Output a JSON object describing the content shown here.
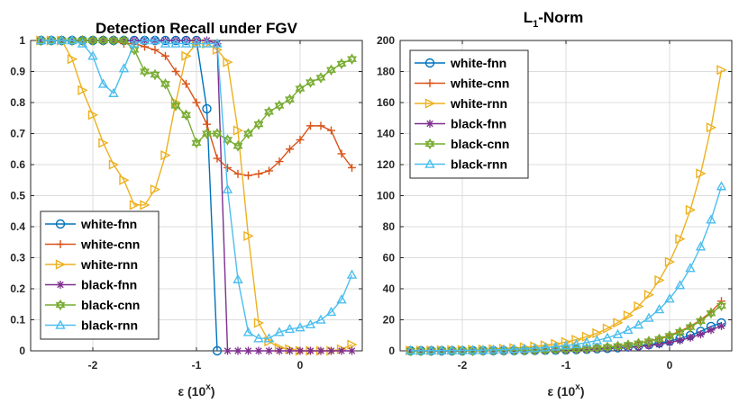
{
  "chart_data": [
    {
      "type": "line",
      "title": "Detection Recall under FGV",
      "xlabel": "ε (10^x)",
      "xlabel_main": "ε (10",
      "xlabel_sup": "x",
      "xlabel_close": ")",
      "ylabel": "",
      "xlim": [
        -2.6,
        0.6
      ],
      "ylim": [
        0,
        1
      ],
      "xticks": [
        -2,
        -1,
        0
      ],
      "xtick_labels": [
        "-2",
        "-1",
        "0"
      ],
      "yticks": [
        0,
        0.1,
        0.2,
        0.3,
        0.4,
        0.5,
        0.6,
        0.7,
        0.8,
        0.9,
        1
      ],
      "ytick_labels": [
        "0",
        "0.1",
        "0.2",
        "0.3",
        "0.4",
        "0.5",
        "0.6",
        "0.7",
        "0.8",
        "0.9",
        "1"
      ],
      "grid": true,
      "legend": "bottom-left",
      "x": [
        -2.5,
        -2.4,
        -2.3,
        -2.2,
        -2.1,
        -2.0,
        -1.9,
        -1.8,
        -1.7,
        -1.6,
        -1.5,
        -1.4,
        -1.3,
        -1.2,
        -1.1,
        -1.0,
        -0.9,
        -0.8,
        -0.7,
        -0.6,
        -0.5,
        -0.4,
        -0.3,
        -0.2,
        -0.1,
        0.0,
        0.1,
        0.2,
        0.3,
        0.4,
        0.5
      ],
      "series": [
        {
          "name": "white-fnn",
          "color": "#0072BD",
          "marker": "circle",
          "values": [
            1,
            1,
            1,
            1,
            1,
            1,
            1,
            1,
            1,
            1,
            1,
            1,
            1,
            1,
            1,
            1,
            0.78,
            0,
            null,
            null,
            null,
            null,
            null,
            null,
            null,
            null,
            null,
            null,
            null,
            null,
            null
          ]
        },
        {
          "name": "white-cnn",
          "color": "#D95319",
          "marker": "plus",
          "values": [
            1,
            1,
            1,
            1,
            1,
            1,
            1,
            1,
            0.99,
            0.99,
            0.98,
            0.97,
            0.95,
            0.9,
            0.86,
            0.8,
            0.73,
            0.62,
            0.59,
            0.57,
            0.565,
            0.57,
            0.58,
            0.61,
            0.65,
            0.68,
            0.725,
            0.725,
            0.71,
            0.635,
            0.59
          ]
        },
        {
          "name": "white-rnn",
          "color": "#EDB120",
          "marker": "triangle-right",
          "values": [
            1,
            1,
            1,
            0.94,
            0.84,
            0.76,
            0.67,
            0.6,
            0.55,
            0.47,
            0.47,
            0.52,
            0.63,
            0.8,
            0.95,
            0.99,
            0.99,
            0.97,
            0.93,
            0.71,
            0.37,
            0.09,
            0.03,
            0.01,
            0.005,
            0,
            0,
            0,
            0,
            0.005,
            0.02
          ]
        },
        {
          "name": "black-fnn",
          "color": "#7E2F8E",
          "marker": "asterisk",
          "values": [
            1,
            1,
            1,
            1,
            1,
            1,
            1,
            1,
            1,
            1,
            1,
            1,
            1,
            1,
            1,
            1,
            1,
            0.99,
            0,
            0,
            0,
            0,
            0,
            0,
            0,
            0,
            0,
            0,
            0,
            0,
            0
          ]
        },
        {
          "name": "black-cnn",
          "color": "#77AC30",
          "marker": "hexagram",
          "values": [
            1,
            1,
            1,
            1,
            1,
            1,
            1,
            1,
            1,
            0.97,
            0.9,
            0.89,
            0.86,
            0.79,
            0.76,
            0.67,
            0.7,
            0.7,
            0.68,
            0.66,
            0.7,
            0.73,
            0.77,
            0.79,
            0.81,
            0.845,
            0.865,
            0.88,
            0.905,
            0.925,
            0.94
          ]
        },
        {
          "name": "black-rnn",
          "color": "#4DBEEE",
          "marker": "triangle-up",
          "values": [
            1,
            1,
            1,
            1,
            0.99,
            0.95,
            0.86,
            0.83,
            0.91,
            0.99,
            1,
            1,
            0.99,
            0.99,
            0.99,
            0.99,
            0.99,
            0.99,
            0.52,
            0.23,
            0.06,
            0.04,
            0.04,
            0.06,
            0.07,
            0.075,
            0.085,
            0.1,
            0.125,
            0.165,
            0.245
          ]
        }
      ]
    },
    {
      "type": "line",
      "title": "L₁-Norm",
      "title_main": "L",
      "title_sub": "1",
      "title_rest": "-Norm",
      "xlabel": "ε (10^x)",
      "xlabel_main": "ε (10",
      "xlabel_sup": "x",
      "xlabel_close": ")",
      "ylabel": "",
      "xlim": [
        -2.6,
        0.6
      ],
      "ylim": [
        0,
        200
      ],
      "xticks": [
        -2,
        -1,
        0
      ],
      "xtick_labels": [
        "-2",
        "-1",
        "0"
      ],
      "yticks": [
        0,
        20,
        40,
        60,
        80,
        100,
        120,
        140,
        160,
        180,
        200
      ],
      "ytick_labels": [
        "0",
        "20",
        "40",
        "60",
        "80",
        "100",
        "120",
        "140",
        "160",
        "180",
        "200"
      ],
      "grid": true,
      "legend": "top-left",
      "x": [
        -2.5,
        -2.4,
        -2.3,
        -2.2,
        -2.1,
        -2.0,
        -1.9,
        -1.8,
        -1.7,
        -1.6,
        -1.5,
        -1.4,
        -1.3,
        -1.2,
        -1.1,
        -1.0,
        -0.9,
        -0.8,
        -0.7,
        -0.6,
        -0.5,
        -0.4,
        -0.3,
        -0.2,
        -0.1,
        0.0,
        0.1,
        0.2,
        0.3,
        0.4,
        0.5
      ],
      "series": [
        {
          "name": "white-fnn",
          "color": "#0072BD",
          "marker": "circle",
          "values": [
            0,
            0,
            0,
            0,
            0,
            0,
            0.1,
            0.1,
            0.1,
            0.2,
            0.2,
            0.3,
            0.3,
            0.4,
            0.5,
            0.6,
            0.8,
            1,
            1.3,
            1.6,
            2,
            2.5,
            3.2,
            4,
            5,
            6.3,
            7.9,
            9.9,
            12.5,
            15.7,
            18
          ]
        },
        {
          "name": "white-cnn",
          "color": "#D95319",
          "marker": "plus",
          "values": [
            0,
            0,
            0,
            0.1,
            0.1,
            0.1,
            0.1,
            0.2,
            0.2,
            0.3,
            0.3,
            0.4,
            0.5,
            0.6,
            0.8,
            1,
            1.3,
            1.6,
            2,
            2.5,
            3.2,
            4,
            5,
            6.3,
            7.9,
            10,
            12.6,
            15.8,
            19.9,
            25.1,
            32
          ]
        },
        {
          "name": "white-rnn",
          "color": "#EDB120",
          "marker": "triangle-right",
          "values": [
            0.2,
            0.2,
            0.3,
            0.4,
            0.5,
            0.6,
            0.7,
            0.9,
            1.1,
            1.4,
            1.8,
            2.3,
            2.9,
            3.6,
            4.5,
            5.7,
            7.2,
            9.1,
            11.4,
            14.4,
            18.1,
            22.8,
            28.7,
            36.1,
            45.5,
            57.3,
            72.1,
            90.8,
            114.3,
            143.9,
            181
          ]
        },
        {
          "name": "black-fnn",
          "color": "#7E2F8E",
          "marker": "asterisk",
          "values": [
            0,
            0,
            0,
            0,
            0,
            0,
            0.1,
            0.1,
            0.1,
            0.1,
            0.2,
            0.2,
            0.3,
            0.3,
            0.4,
            0.5,
            0.7,
            0.8,
            1.1,
            1.3,
            1.7,
            2.1,
            2.7,
            3.4,
            4.2,
            5.3,
            6.7,
            8.5,
            10.6,
            13.4,
            16
          ]
        },
        {
          "name": "black-cnn",
          "color": "#77AC30",
          "marker": "hexagram",
          "values": [
            0,
            0,
            0,
            0.1,
            0.1,
            0.1,
            0.1,
            0.2,
            0.2,
            0.2,
            0.3,
            0.4,
            0.5,
            0.6,
            0.8,
            1,
            1.2,
            1.5,
            1.9,
            2.4,
            3,
            3.8,
            4.8,
            6.1,
            7.6,
            9.6,
            12.1,
            15.3,
            19.2,
            24.2,
            29
          ]
        },
        {
          "name": "black-rnn",
          "color": "#4DBEEE",
          "marker": "triangle-up",
          "values": [
            0.1,
            0.1,
            0.2,
            0.2,
            0.3,
            0.3,
            0.4,
            0.5,
            0.7,
            0.8,
            1.1,
            1.3,
            1.7,
            2.1,
            2.7,
            3.4,
            4.2,
            5.3,
            6.7,
            8.4,
            10.6,
            13.4,
            16.8,
            21.2,
            26.7,
            33.6,
            42.3,
            53.3,
            67.1,
            84.5,
            106
          ]
        }
      ]
    }
  ]
}
